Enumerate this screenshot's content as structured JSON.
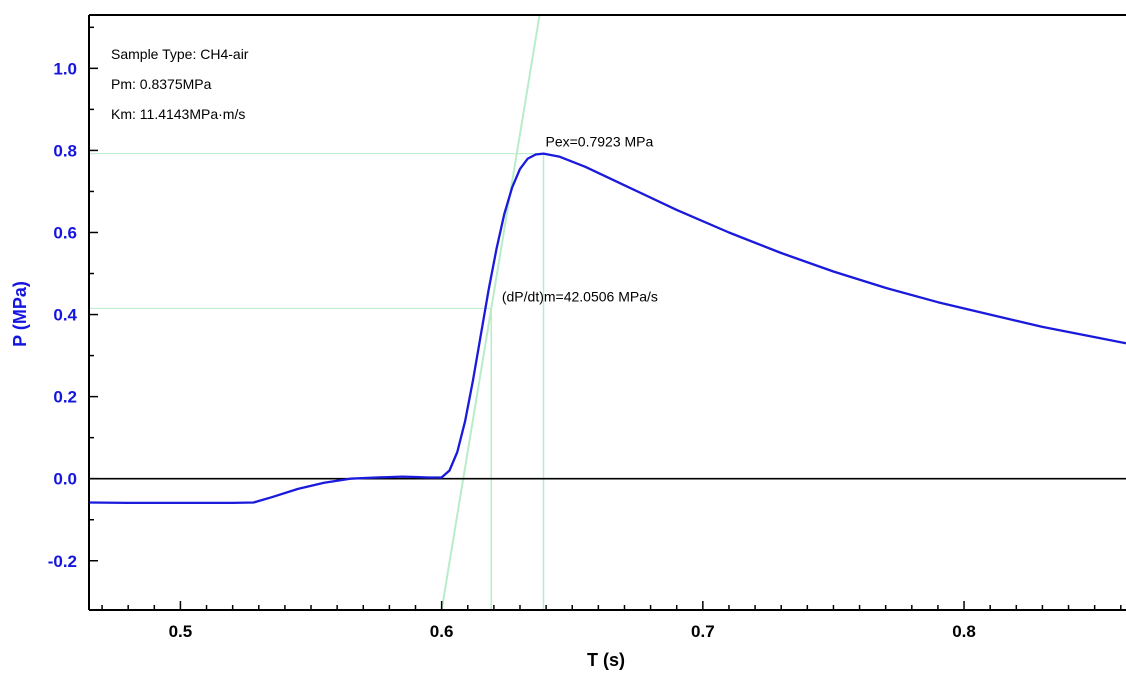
{
  "chart_data": {
    "type": "line",
    "xlabel": "T (s)",
    "ylabel": "P (MPa)",
    "xlim": [
      0.465,
      0.862
    ],
    "ylim": [
      -0.32,
      1.13
    ],
    "x_ticks": [
      0.5,
      0.6,
      0.7,
      0.8
    ],
    "y_ticks": [
      -0.2,
      0.0,
      0.2,
      0.4,
      0.6,
      0.8,
      1.0
    ],
    "grid": false,
    "colors": {
      "series": "#1a1adc",
      "y_axis_text": "#1515e0",
      "guide": "#b9ecc9",
      "baseline": "#000000"
    },
    "info_box": [
      "Sample Type: CH4-air",
      "Pm: 0.8375MPa",
      "Km: 11.4143MPa·m/s"
    ],
    "annotations": [
      {
        "text": "Pex=0.7923 MPa",
        "x": 0.639,
        "y": 0.7923
      },
      {
        "text": "(dP/dt)m=42.0506 MPa/s",
        "x": 0.62,
        "y": 0.415
      }
    ],
    "guides": {
      "peak_x": 0.639,
      "peak_y": 0.7923,
      "slope_x": 0.619,
      "slope_y": 0.415,
      "tangent": {
        "x1": 0.6,
        "y1": -0.32,
        "x2": 0.6375,
        "y2": 1.13
      }
    },
    "series": [
      {
        "x": [
          0.465,
          0.48,
          0.5,
          0.52,
          0.528,
          0.535,
          0.545,
          0.555,
          0.565,
          0.575,
          0.585,
          0.59,
          0.595,
          0.6,
          0.603,
          0.606,
          0.609,
          0.612,
          0.615,
          0.618,
          0.621,
          0.624,
          0.627,
          0.63,
          0.633,
          0.636,
          0.639,
          0.645,
          0.655,
          0.67,
          0.69,
          0.71,
          0.73,
          0.75,
          0.77,
          0.79,
          0.81,
          0.83,
          0.85,
          0.862
        ],
        "y": [
          -0.058,
          -0.059,
          -0.059,
          -0.059,
          -0.058,
          -0.045,
          -0.025,
          -0.01,
          0.0,
          0.003,
          0.005,
          0.004,
          0.003,
          0.003,
          0.02,
          0.065,
          0.14,
          0.24,
          0.35,
          0.46,
          0.56,
          0.645,
          0.71,
          0.755,
          0.78,
          0.79,
          0.7923,
          0.785,
          0.76,
          0.715,
          0.655,
          0.6,
          0.55,
          0.505,
          0.465,
          0.43,
          0.4,
          0.37,
          0.345,
          0.33
        ]
      }
    ]
  }
}
